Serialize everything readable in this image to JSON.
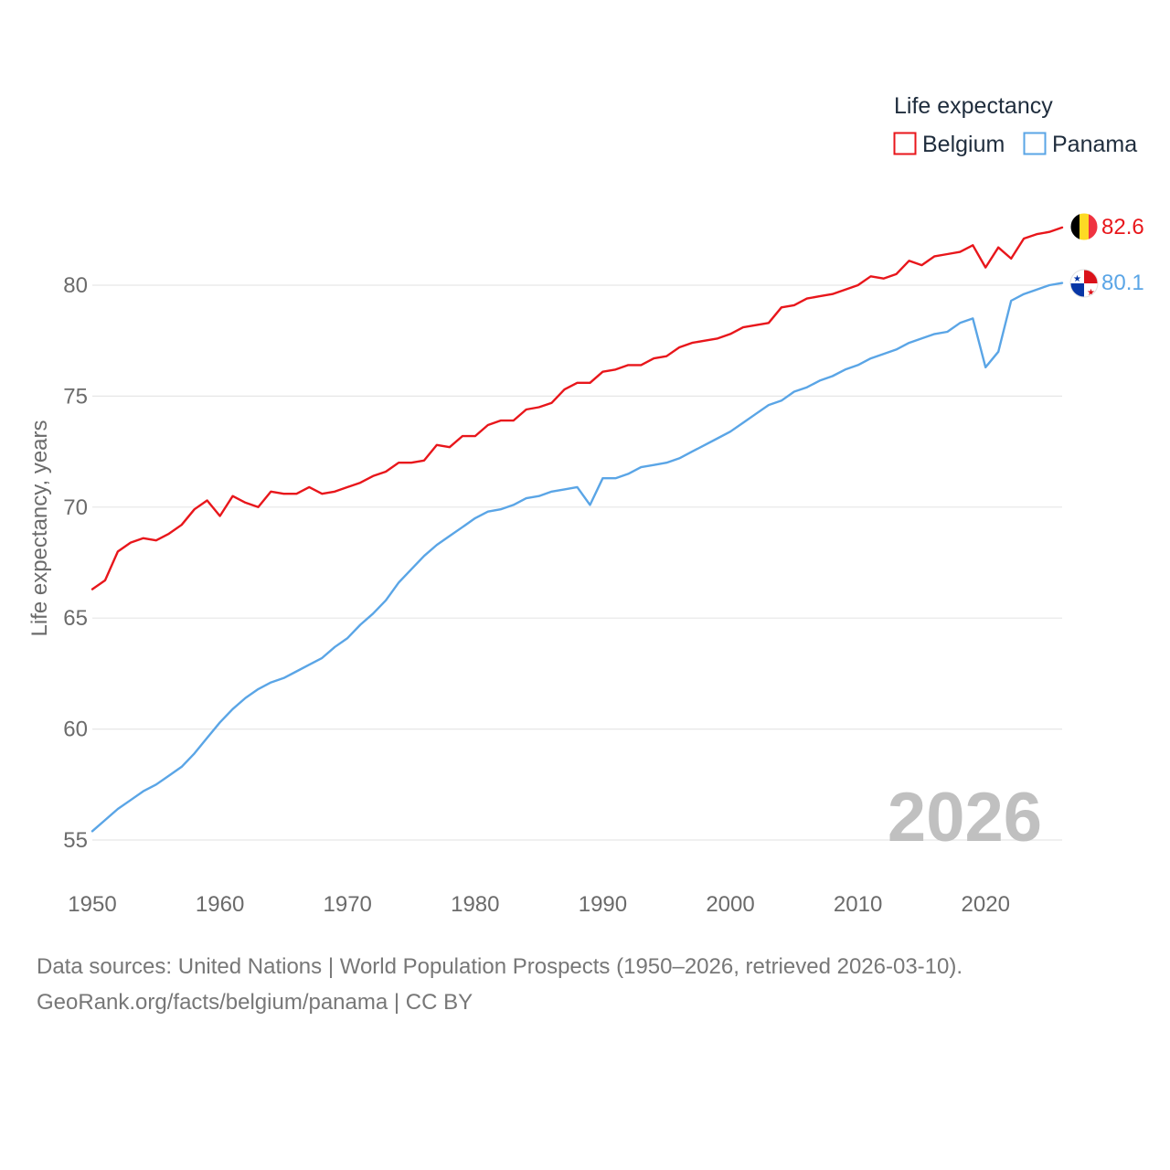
{
  "chart_data": {
    "type": "line",
    "legend_title": "Life expectancy",
    "ylabel": "Life expectancy, years",
    "xlabel": "",
    "xlim": [
      1950,
      2026
    ],
    "ylim": [
      53.5,
      84
    ],
    "x_ticks": [
      1950,
      1960,
      1970,
      1980,
      1990,
      2000,
      2010,
      2020
    ],
    "y_ticks": [
      55,
      60,
      65,
      70,
      75,
      80
    ],
    "current_year": "2026",
    "legend_position": "top-right",
    "series": [
      {
        "name": "Belgium",
        "color": "#e8161b",
        "end_label": "82.6",
        "flag": "belgium-flag",
        "values": [
          66.3,
          66.7,
          68.0,
          68.4,
          68.6,
          68.5,
          68.8,
          69.2,
          69.9,
          70.3,
          69.6,
          70.5,
          70.2,
          70.0,
          70.7,
          70.6,
          70.6,
          70.9,
          70.6,
          70.7,
          70.9,
          71.1,
          71.4,
          71.6,
          72.0,
          72.0,
          72.1,
          72.8,
          72.7,
          73.2,
          73.2,
          73.7,
          73.9,
          73.9,
          74.4,
          74.5,
          74.7,
          75.3,
          75.6,
          75.6,
          76.1,
          76.2,
          76.4,
          76.4,
          76.7,
          76.8,
          77.2,
          77.4,
          77.5,
          77.6,
          77.8,
          78.1,
          78.2,
          78.3,
          79.0,
          79.1,
          79.4,
          79.5,
          79.6,
          79.8,
          80.0,
          80.4,
          80.3,
          80.5,
          81.1,
          80.9,
          81.3,
          81.4,
          81.5,
          81.8,
          80.8,
          81.7,
          81.2,
          82.1,
          82.3,
          82.4,
          82.6
        ]
      },
      {
        "name": "Panama",
        "color": "#5aa5e6",
        "end_label": "80.1",
        "flag": "panama-flag",
        "values": [
          55.4,
          55.9,
          56.4,
          56.8,
          57.2,
          57.5,
          57.9,
          58.3,
          58.9,
          59.6,
          60.3,
          60.9,
          61.4,
          61.8,
          62.1,
          62.3,
          62.6,
          62.9,
          63.2,
          63.7,
          64.1,
          64.7,
          65.2,
          65.8,
          66.6,
          67.2,
          67.8,
          68.3,
          68.7,
          69.1,
          69.5,
          69.8,
          69.9,
          70.1,
          70.4,
          70.5,
          70.7,
          70.8,
          70.9,
          70.1,
          71.3,
          71.3,
          71.5,
          71.8,
          71.9,
          72.0,
          72.2,
          72.5,
          72.8,
          73.1,
          73.4,
          73.8,
          74.2,
          74.6,
          74.8,
          75.2,
          75.4,
          75.7,
          75.9,
          76.2,
          76.4,
          76.7,
          76.9,
          77.1,
          77.4,
          77.6,
          77.8,
          77.9,
          78.3,
          78.5,
          76.3,
          77.0,
          79.3,
          79.6,
          79.8,
          80.0,
          80.1
        ]
      }
    ]
  },
  "footer": {
    "source": "Data sources: United Nations | World Population Prospects (1950–2026, retrieved 2026-03-10).",
    "credit": "GeoRank.org/facts/belgium/panama | CC BY"
  }
}
